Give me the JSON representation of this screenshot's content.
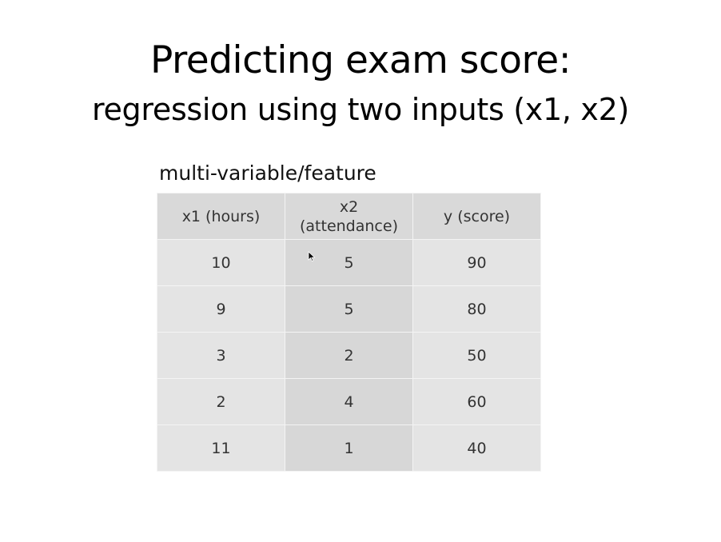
{
  "slide": {
    "title": "Predicting exam score:",
    "subtitle": "regression using two inputs (x1, x2)",
    "caption": "multi-variable/feature"
  },
  "table": {
    "headers": [
      {
        "line1": "x1 (hours)",
        "line2": ""
      },
      {
        "line1": "x2",
        "line2": "(attendance)"
      },
      {
        "line1": "y (score)",
        "line2": ""
      }
    ],
    "rows": [
      [
        "10",
        "5",
        "90"
      ],
      [
        "9",
        "5",
        "80"
      ],
      [
        "3",
        "2",
        "50"
      ],
      [
        "2",
        "4",
        "60"
      ],
      [
        "11",
        "1",
        "40"
      ]
    ]
  },
  "colors": {
    "header_bg": "#d9d9d9",
    "cell_bg": "#e4e4e4",
    "middle_column_bg": "#d7d7d7",
    "grid_line": "#f4f4f4"
  },
  "icons": {
    "cursor": "mouse-pointer-icon"
  }
}
